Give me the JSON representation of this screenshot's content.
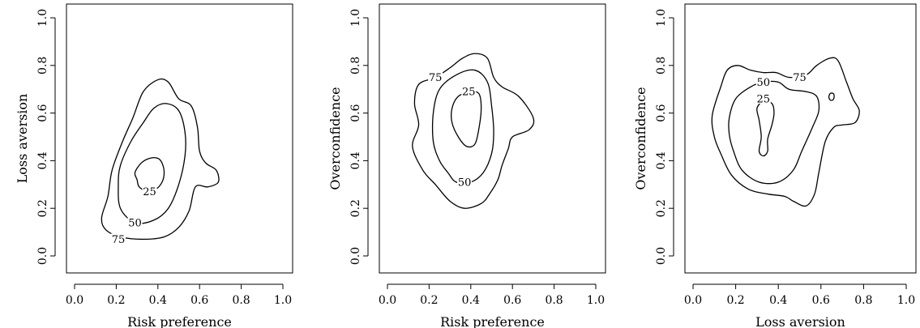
{
  "chart_data": [
    {
      "type": "contour",
      "xlabel": "Risk preference",
      "ylabel": "Loss aversion",
      "xlim": [
        0,
        1
      ],
      "ylim": [
        0,
        1
      ],
      "xticks": [
        "0.0",
        "0.2",
        "0.4",
        "0.6",
        "0.8",
        "1.0"
      ],
      "yticks": [
        "0.0",
        "0.2",
        "0.4",
        "0.6",
        "0.8",
        "1.0"
      ],
      "grid": false,
      "legend": "none",
      "contours": [
        {
          "level": "25",
          "label_at": [
            0.36,
            0.27
          ],
          "points": [
            [
              0.3,
              0.32
            ],
            [
              0.29,
              0.35
            ],
            [
              0.32,
              0.39
            ],
            [
              0.36,
              0.41
            ],
            [
              0.4,
              0.41
            ],
            [
              0.42,
              0.39
            ],
            [
              0.43,
              0.35
            ],
            [
              0.42,
              0.31
            ],
            [
              0.39,
              0.28
            ],
            [
              0.35,
              0.27
            ],
            [
              0.31,
              0.29
            ]
          ]
        },
        {
          "level": "50",
          "label_at": [
            0.29,
            0.14
          ],
          "points": [
            [
              0.21,
              0.3
            ],
            [
              0.22,
              0.38
            ],
            [
              0.27,
              0.48
            ],
            [
              0.33,
              0.56
            ],
            [
              0.38,
              0.62
            ],
            [
              0.44,
              0.64
            ],
            [
              0.5,
              0.61
            ],
            [
              0.53,
              0.52
            ],
            [
              0.53,
              0.42
            ],
            [
              0.5,
              0.3
            ],
            [
              0.45,
              0.2
            ],
            [
              0.38,
              0.15
            ],
            [
              0.29,
              0.14
            ],
            [
              0.22,
              0.2
            ]
          ]
        },
        {
          "level": "75",
          "label_at": [
            0.21,
            0.07
          ],
          "points": [
            [
              0.13,
              0.16
            ],
            [
              0.16,
              0.25
            ],
            [
              0.18,
              0.36
            ],
            [
              0.23,
              0.48
            ],
            [
              0.28,
              0.58
            ],
            [
              0.33,
              0.69
            ],
            [
              0.4,
              0.74
            ],
            [
              0.45,
              0.73
            ],
            [
              0.5,
              0.66
            ],
            [
              0.56,
              0.63
            ],
            [
              0.59,
              0.54
            ],
            [
              0.6,
              0.44
            ],
            [
              0.63,
              0.39
            ],
            [
              0.68,
              0.36
            ],
            [
              0.69,
              0.31
            ],
            [
              0.64,
              0.29
            ],
            [
              0.58,
              0.29
            ],
            [
              0.55,
              0.19
            ],
            [
              0.5,
              0.12
            ],
            [
              0.43,
              0.08
            ],
            [
              0.33,
              0.07
            ],
            [
              0.22,
              0.08
            ],
            [
              0.15,
              0.11
            ]
          ]
        }
      ]
    },
    {
      "type": "contour",
      "xlabel": "Risk preference",
      "ylabel": "Overconfidence",
      "xlim": [
        0,
        1
      ],
      "ylim": [
        0,
        1
      ],
      "xticks": [
        "0.0",
        "0.2",
        "0.4",
        "0.6",
        "0.8",
        "1.0"
      ],
      "yticks": [
        "0.0",
        "0.2",
        "0.4",
        "0.6",
        "0.8",
        "1.0"
      ],
      "grid": false,
      "legend": "none",
      "contours": [
        {
          "level": "25",
          "label_at": [
            0.39,
            0.69
          ],
          "points": [
            [
              0.31,
              0.56
            ],
            [
              0.31,
              0.62
            ],
            [
              0.34,
              0.67
            ],
            [
              0.4,
              0.69
            ],
            [
              0.44,
              0.68
            ],
            [
              0.45,
              0.62
            ],
            [
              0.44,
              0.54
            ],
            [
              0.42,
              0.47
            ],
            [
              0.38,
              0.46
            ],
            [
              0.34,
              0.5
            ]
          ]
        },
        {
          "level": "50",
          "label_at": [
            0.37,
            0.31
          ],
          "points": [
            [
              0.22,
              0.48
            ],
            [
              0.22,
              0.6
            ],
            [
              0.25,
              0.7
            ],
            [
              0.33,
              0.76
            ],
            [
              0.42,
              0.78
            ],
            [
              0.48,
              0.73
            ],
            [
              0.5,
              0.63
            ],
            [
              0.51,
              0.52
            ],
            [
              0.5,
              0.43
            ],
            [
              0.46,
              0.35
            ],
            [
              0.4,
              0.31
            ],
            [
              0.33,
              0.31
            ],
            [
              0.29,
              0.35
            ],
            [
              0.25,
              0.4
            ]
          ]
        },
        {
          "level": "75",
          "label_at": [
            0.23,
            0.75
          ],
          "points": [
            [
              0.12,
              0.46
            ],
            [
              0.15,
              0.55
            ],
            [
              0.13,
              0.64
            ],
            [
              0.15,
              0.72
            ],
            [
              0.23,
              0.75
            ],
            [
              0.3,
              0.79
            ],
            [
              0.36,
              0.83
            ],
            [
              0.42,
              0.85
            ],
            [
              0.48,
              0.83
            ],
            [
              0.51,
              0.75
            ],
            [
              0.55,
              0.71
            ],
            [
              0.63,
              0.67
            ],
            [
              0.7,
              0.58
            ],
            [
              0.68,
              0.53
            ],
            [
              0.6,
              0.5
            ],
            [
              0.58,
              0.45
            ],
            [
              0.55,
              0.38
            ],
            [
              0.53,
              0.32
            ],
            [
              0.49,
              0.26
            ],
            [
              0.45,
              0.22
            ],
            [
              0.37,
              0.2
            ],
            [
              0.3,
              0.23
            ],
            [
              0.23,
              0.3
            ],
            [
              0.17,
              0.36
            ]
          ]
        }
      ]
    },
    {
      "type": "contour",
      "xlabel": "Loss aversion",
      "ylabel": "Overconfidence",
      "xlim": [
        0,
        1
      ],
      "ylim": [
        0,
        1
      ],
      "xticks": [
        "0.0",
        "0.2",
        "0.4",
        "0.6",
        "0.8",
        "1.0"
      ],
      "yticks": [
        "0.0",
        "0.2",
        "0.4",
        "0.6",
        "0.8",
        "1.0"
      ],
      "grid": false,
      "legend": "none",
      "contours": [
        {
          "level": "25",
          "label_at": [
            0.33,
            0.66
          ],
          "points": [
            [
              0.31,
              0.57
            ],
            [
              0.3,
              0.62
            ],
            [
              0.33,
              0.65
            ],
            [
              0.37,
              0.64
            ],
            [
              0.38,
              0.6
            ],
            [
              0.37,
              0.55
            ],
            [
              0.35,
              0.49
            ],
            [
              0.35,
              0.44
            ],
            [
              0.33,
              0.42
            ],
            [
              0.31,
              0.44
            ],
            [
              0.32,
              0.5
            ]
          ]
        },
        {
          "level": "50",
          "label_at": [
            0.33,
            0.73
          ],
          "points": [
            [
              0.17,
              0.51
            ],
            [
              0.17,
              0.58
            ],
            [
              0.2,
              0.66
            ],
            [
              0.27,
              0.71
            ],
            [
              0.33,
              0.73
            ],
            [
              0.4,
              0.73
            ],
            [
              0.45,
              0.7
            ],
            [
              0.53,
              0.69
            ],
            [
              0.58,
              0.67
            ],
            [
              0.59,
              0.61
            ],
            [
              0.56,
              0.54
            ],
            [
              0.51,
              0.44
            ],
            [
              0.47,
              0.36
            ],
            [
              0.4,
              0.31
            ],
            [
              0.31,
              0.31
            ],
            [
              0.23,
              0.36
            ],
            [
              0.19,
              0.44
            ]
          ]
        },
        {
          "level": "75",
          "label_at": [
            0.5,
            0.75
          ],
          "points": [
            [
              0.1,
              0.5
            ],
            [
              0.09,
              0.59
            ],
            [
              0.13,
              0.71
            ],
            [
              0.16,
              0.78
            ],
            [
              0.21,
              0.8
            ],
            [
              0.27,
              0.78
            ],
            [
              0.33,
              0.77
            ],
            [
              0.39,
              0.77
            ],
            [
              0.45,
              0.75
            ],
            [
              0.53,
              0.76
            ],
            [
              0.58,
              0.8
            ],
            [
              0.64,
              0.83
            ],
            [
              0.68,
              0.82
            ],
            [
              0.72,
              0.73
            ],
            [
              0.75,
              0.66
            ],
            [
              0.78,
              0.61
            ],
            [
              0.76,
              0.56
            ],
            [
              0.7,
              0.55
            ],
            [
              0.66,
              0.54
            ],
            [
              0.62,
              0.48
            ],
            [
              0.59,
              0.35
            ],
            [
              0.57,
              0.26
            ],
            [
              0.53,
              0.21
            ],
            [
              0.47,
              0.23
            ],
            [
              0.43,
              0.25
            ],
            [
              0.35,
              0.26
            ],
            [
              0.26,
              0.28
            ],
            [
              0.18,
              0.34
            ],
            [
              0.13,
              0.43
            ]
          ]
        },
        {
          "level": "",
          "points": [
            [
              0.638,
              0.673
            ],
            [
              0.645,
              0.683
            ],
            [
              0.658,
              0.682
            ],
            [
              0.662,
              0.67
            ],
            [
              0.657,
              0.656
            ],
            [
              0.645,
              0.654
            ],
            [
              0.638,
              0.663
            ]
          ]
        }
      ]
    }
  ]
}
